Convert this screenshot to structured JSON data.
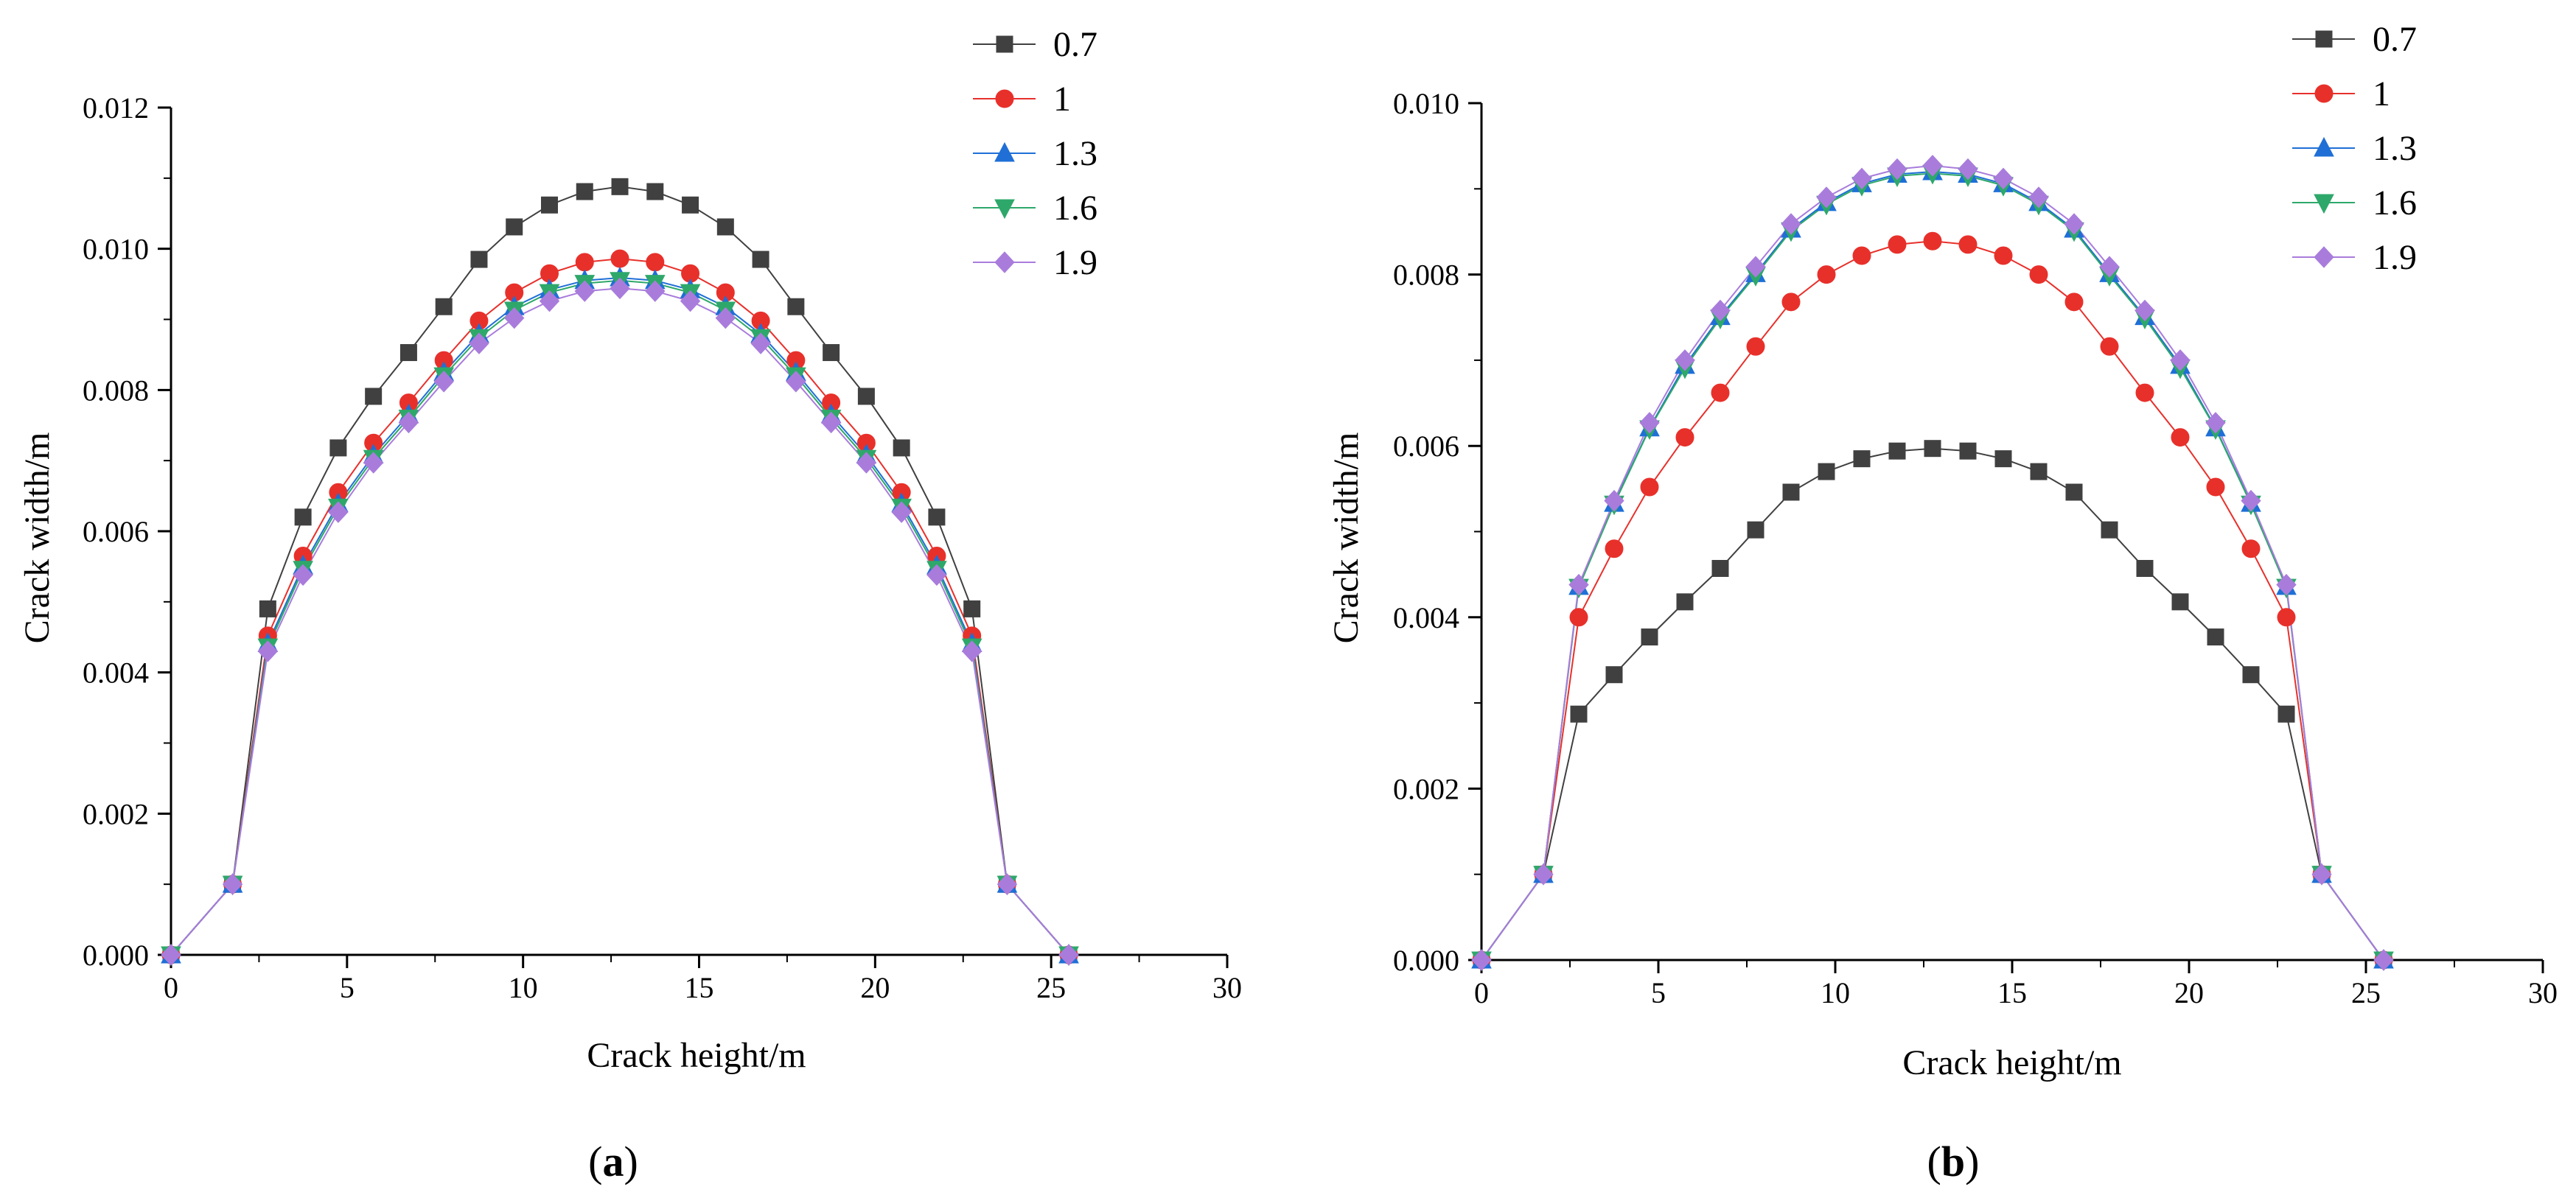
{
  "chart_data": [
    {
      "type": "line",
      "panel_label": "(a)",
      "panel_letter": "a",
      "xlabel": "Crack height/m",
      "ylabel": "Crack width/m",
      "xlim": [
        0,
        30
      ],
      "ylim": [
        0,
        0.012
      ],
      "xticks": [
        0,
        5,
        10,
        15,
        20,
        25,
        30
      ],
      "yticks": [
        0,
        0.002,
        0.004,
        0.006,
        0.008,
        0.01,
        0.012
      ],
      "ytick_labels": [
        "0.000",
        "0.002",
        "0.004",
        "0.006",
        "0.008",
        "0.010",
        "0.012"
      ],
      "x": [
        0,
        1.75,
        2.75,
        3.75,
        4.75,
        5.75,
        6.75,
        7.75,
        8.75,
        9.75,
        10.75,
        11.75,
        12.75,
        13.75,
        14.75,
        15.75,
        16.75,
        17.75,
        18.75,
        19.75,
        20.75,
        21.75,
        22.75,
        23.75,
        25.5
      ],
      "legend_position": "top-right, outside plot",
      "series": [
        {
          "name": "0.7",
          "color": "#404040",
          "marker": "square",
          "values": [
            0,
            0.001,
            0.0049,
            0.0062,
            0.00718,
            0.00791,
            0.00853,
            0.00918,
            0.00985,
            0.01031,
            0.01062,
            0.01081,
            0.01088,
            0.01081,
            0.01062,
            0.01031,
            0.00985,
            0.00918,
            0.00853,
            0.00791,
            0.00718,
            0.0062,
            0.0049,
            0.001,
            0
          ]
        },
        {
          "name": "1",
          "color": "#e8302b",
          "marker": "circle",
          "values": [
            0,
            0.001,
            0.00452,
            0.00565,
            0.00655,
            0.00725,
            0.00782,
            0.00842,
            0.00898,
            0.00938,
            0.00965,
            0.00981,
            0.00986,
            0.00981,
            0.00965,
            0.00938,
            0.00898,
            0.00842,
            0.00782,
            0.00725,
            0.00655,
            0.00565,
            0.00452,
            0.001,
            0
          ]
        },
        {
          "name": "1.3",
          "color": "#1f6fd6",
          "marker": "triangle-up",
          "values": [
            0,
            0.001,
            0.00441,
            0.00551,
            0.00639,
            0.00708,
            0.00765,
            0.00825,
            0.00879,
            0.00918,
            0.00942,
            0.00955,
            0.00959,
            0.00955,
            0.00942,
            0.00918,
            0.00879,
            0.00825,
            0.00765,
            0.00708,
            0.00639,
            0.00551,
            0.00441,
            0.001,
            0
          ]
        },
        {
          "name": "1.6",
          "color": "#2ea86a",
          "marker": "triangle-down",
          "values": [
            0,
            0.001,
            0.00436,
            0.00546,
            0.00634,
            0.00703,
            0.0076,
            0.0082,
            0.00874,
            0.00913,
            0.00938,
            0.00951,
            0.00955,
            0.00951,
            0.00938,
            0.00913,
            0.00874,
            0.0082,
            0.0076,
            0.00703,
            0.00634,
            0.00546,
            0.00436,
            0.001,
            0
          ]
        },
        {
          "name": "1.9",
          "color": "#a97cdc",
          "marker": "diamond",
          "values": [
            0,
            0.001,
            0.0043,
            0.00538,
            0.00627,
            0.00697,
            0.00754,
            0.00812,
            0.00866,
            0.00902,
            0.00926,
            0.0094,
            0.00944,
            0.0094,
            0.00926,
            0.00902,
            0.00866,
            0.00812,
            0.00754,
            0.00697,
            0.00627,
            0.00538,
            0.0043,
            0.001,
            0
          ]
        }
      ]
    },
    {
      "type": "line",
      "panel_label": "(b)",
      "panel_letter": "b",
      "xlabel": "Crack height/m",
      "ylabel": "Crack width/m",
      "xlim": [
        0,
        30
      ],
      "ylim": [
        0,
        0.01
      ],
      "xticks": [
        0,
        5,
        10,
        15,
        20,
        25,
        30
      ],
      "yticks": [
        0,
        0.002,
        0.004,
        0.006,
        0.008,
        0.01
      ],
      "ytick_labels": [
        "0.000",
        "0.002",
        "0.004",
        "0.006",
        "0.008",
        "0.010"
      ],
      "x": [
        0,
        1.75,
        2.75,
        3.75,
        4.75,
        5.75,
        6.75,
        7.75,
        8.75,
        9.75,
        10.75,
        11.75,
        12.75,
        13.75,
        14.75,
        15.75,
        16.75,
        17.75,
        18.75,
        19.75,
        20.75,
        21.75,
        22.75,
        23.75,
        25.5
      ],
      "legend_position": "top-right, outside plot",
      "series": [
        {
          "name": "0.7",
          "color": "#404040",
          "marker": "square",
          "values": [
            0,
            0.001,
            0.00287,
            0.00333,
            0.00377,
            0.00418,
            0.00457,
            0.00502,
            0.00546,
            0.0057,
            0.00585,
            0.00594,
            0.00597,
            0.00594,
            0.00585,
            0.0057,
            0.00546,
            0.00502,
            0.00457,
            0.00418,
            0.00377,
            0.00333,
            0.00287,
            0.001,
            0
          ]
        },
        {
          "name": "1",
          "color": "#e8302b",
          "marker": "circle",
          "values": [
            0,
            0.001,
            0.004,
            0.0048,
            0.00552,
            0.0061,
            0.00662,
            0.00716,
            0.00768,
            0.008,
            0.00822,
            0.00835,
            0.00839,
            0.00835,
            0.00822,
            0.008,
            0.00768,
            0.00716,
            0.00662,
            0.0061,
            0.00552,
            0.0048,
            0.004,
            0.001,
            0
          ]
        },
        {
          "name": "1.3",
          "color": "#1f6fd6",
          "marker": "triangle-up",
          "values": [
            0,
            0.001,
            0.00436,
            0.00533,
            0.00621,
            0.00694,
            0.00751,
            0.00801,
            0.00853,
            0.00884,
            0.00906,
            0.00917,
            0.0092,
            0.00917,
            0.00906,
            0.00884,
            0.00853,
            0.00801,
            0.00751,
            0.00694,
            0.00621,
            0.00533,
            0.00436,
            0.001,
            0
          ]
        },
        {
          "name": "1.6",
          "color": "#2ea86a",
          "marker": "triangle-down",
          "values": [
            0,
            0.001,
            0.00435,
            0.00532,
            0.0062,
            0.00691,
            0.00749,
            0.00799,
            0.00851,
            0.00882,
            0.00904,
            0.00915,
            0.00918,
            0.00915,
            0.00904,
            0.00882,
            0.00851,
            0.00799,
            0.00749,
            0.00691,
            0.0062,
            0.00532,
            0.00435,
            0.001,
            0
          ]
        },
        {
          "name": "1.9",
          "color": "#a97cdc",
          "marker": "diamond",
          "values": [
            0,
            0.001,
            0.00438,
            0.00536,
            0.00627,
            0.007,
            0.00758,
            0.00809,
            0.00859,
            0.0089,
            0.00912,
            0.00923,
            0.00927,
            0.00923,
            0.00912,
            0.0089,
            0.00859,
            0.00809,
            0.00758,
            0.007,
            0.00627,
            0.00536,
            0.00438,
            0.001,
            0
          ]
        }
      ]
    }
  ]
}
